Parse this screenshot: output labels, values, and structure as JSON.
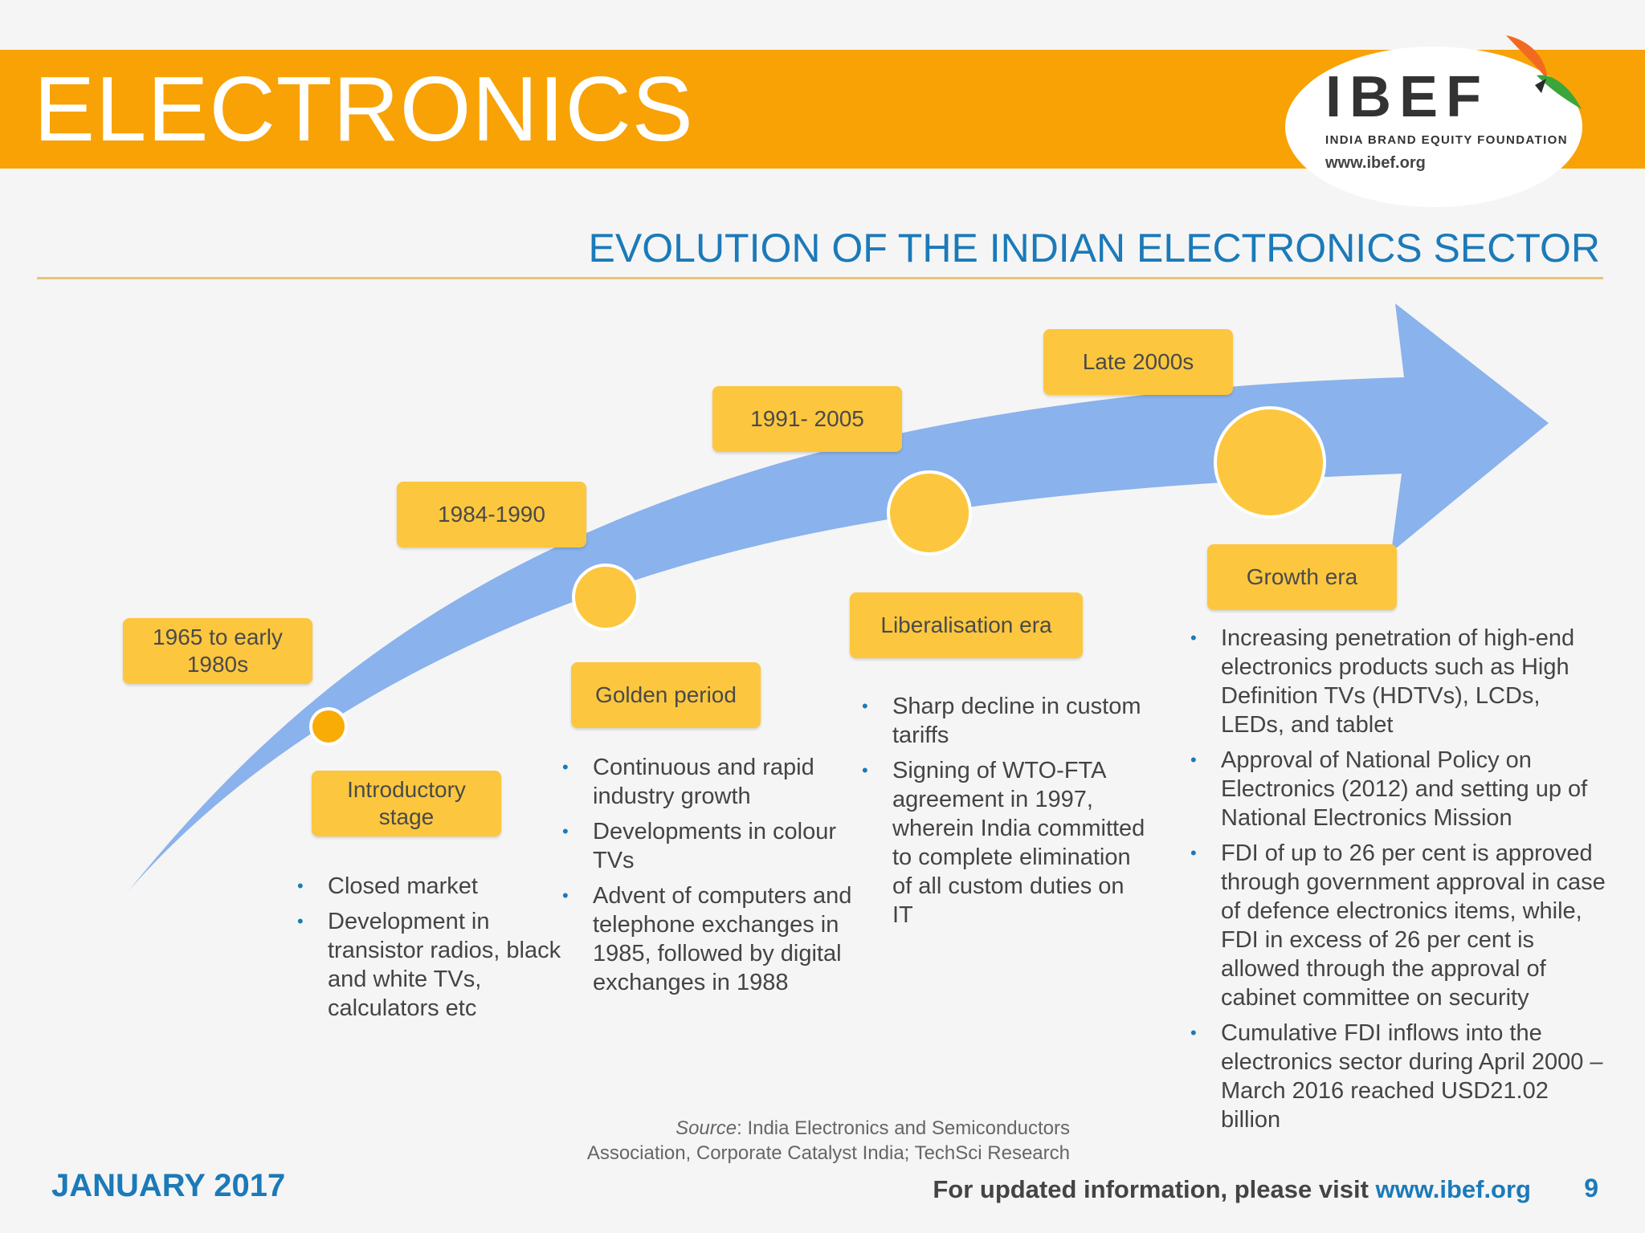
{
  "header": {
    "title": "ELECTRONICS"
  },
  "logo": {
    "name": "IBEF",
    "tagline": "INDIA BRAND EQUITY FOUNDATION",
    "url": "www.ibef.org"
  },
  "section": {
    "title": "EVOLUTION OF THE INDIAN ELECTRONICS SECTOR"
  },
  "stages": [
    {
      "period": "1965 to early 1980s",
      "name": "Introductory stage",
      "points": [
        "Closed market",
        "Development in transistor radios, black and white TVs, calculators etc"
      ]
    },
    {
      "period": "1984-1990",
      "name": "Golden period",
      "points": [
        "Continuous and rapid industry growth",
        "Developments in colour TVs",
        "Advent of computers and telephone exchanges in 1985, followed by digital exchanges in 1988"
      ]
    },
    {
      "period": "1991- 2005",
      "name": "Liberalisation era",
      "points": [
        "Sharp decline in custom tariffs",
        "Signing of WTO-FTA agreement in 1997, wherein India committed to complete elimination of all custom duties on IT"
      ]
    },
    {
      "period": "Late 2000s",
      "name": "Growth era",
      "points": [
        "Increasing penetration of high-end electronics products such as High Definition TVs (HDTVs), LCDs, LEDs, and tablet",
        "Approval of National Policy on Electronics (2012) and setting up of National Electronics Mission",
        "FDI of up to 26 per cent is approved through government approval in case of defence electronics items, while, FDI in excess of 26 per cent is allowed through the approval of cabinet committee on security",
        "Cumulative FDI inflows into the electronics sector during April 2000 – March 2016 reached USD21.02 billion"
      ]
    }
  ],
  "source": {
    "label": "Source",
    "text": ": India Electronics and Semiconductors",
    "text2": "Association, Corporate Catalyst India; TechSci Research"
  },
  "footer": {
    "date": "JANUARY 2017",
    "visit_text": "For updated information, please visit ",
    "visit_url": "www.ibef.org",
    "page": "9"
  },
  "colors": {
    "orange": "#f8a206",
    "blue": "#1b7ab9",
    "arrow": "#8ab2ec",
    "label": "#fcc73e"
  }
}
